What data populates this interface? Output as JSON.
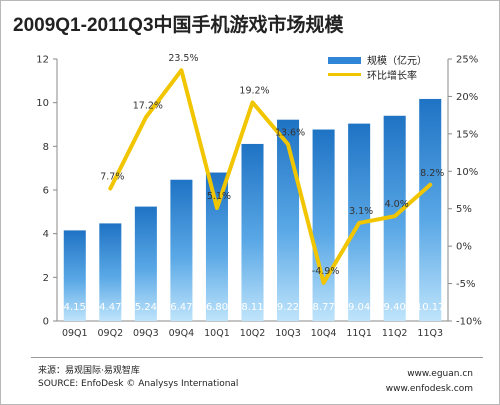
{
  "chart_data": {
    "type": "bar",
    "title": "2009Q1-2011Q3中国手机游戏市场规模",
    "categories": [
      "09Q1",
      "09Q2",
      "09Q3",
      "09Q4",
      "10Q1",
      "10Q2",
      "10Q3",
      "10Q4",
      "11Q1",
      "11Q2",
      "11Q3"
    ],
    "series": [
      {
        "name": "规模（亿元）",
        "type": "bar",
        "axis": "left",
        "values": [
          4.15,
          4.47,
          5.24,
          6.47,
          6.8,
          8.11,
          9.22,
          8.77,
          9.04,
          9.4,
          10.17
        ],
        "labels": [
          "4.15",
          "4.47",
          "5.24",
          "6.47",
          "6.80",
          "8.11",
          "9.22",
          "8.77",
          "9.04",
          "9.40",
          "10.17"
        ]
      },
      {
        "name": "环比增长率",
        "type": "line",
        "axis": "right",
        "values": [
          null,
          7.7,
          17.2,
          23.5,
          5.1,
          19.2,
          13.6,
          -4.9,
          3.1,
          4.0,
          8.2
        ],
        "labels": [
          "",
          "7.7%",
          "17.2%",
          "23.5%",
          "5.1%",
          "19.2%",
          "13.6%",
          "-4.9%",
          "3.1%",
          "4.0%",
          "8.2%"
        ]
      }
    ],
    "left_axis": {
      "ylim": [
        0,
        12
      ],
      "ticks": [
        "0",
        "2",
        "4",
        "6",
        "8",
        "10",
        "12"
      ]
    },
    "right_axis": {
      "ylim": [
        -10,
        25
      ],
      "ticks": [
        "-10%",
        "-5%",
        "0%",
        "5%",
        "10%",
        "15%",
        "20%",
        "25%"
      ]
    },
    "legend_position": "top-right",
    "colors": {
      "bar_top": "#1f73c4",
      "bar_bottom": "#bfe4fb",
      "line": "#f1c500"
    }
  },
  "footer": {
    "source_cn": "来源：易观国际·易观智库",
    "source_en": "SOURCE: EnfoDesk © Analysys International",
    "site1": "www.eguan.cn",
    "site2": "www.enfodesk.com"
  }
}
